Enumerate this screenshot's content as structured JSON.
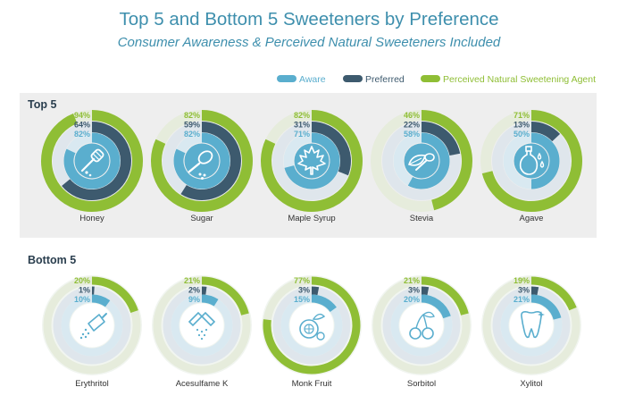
{
  "colors": {
    "aware": "#5aaece",
    "preferred": "#3d5a6e",
    "natural": "#8fbe35",
    "title": "#3e8fad",
    "panel": "#eeeeee"
  },
  "chart_data": {
    "type": "radial-bar",
    "title": "Top 5 and Bottom 5 Sweeteners by Preference",
    "subtitle": "Consumer Awareness & Perceived Natural Sweeteners Included",
    "legend": {
      "aware": "Aware",
      "preferred": "Preferred",
      "natural": "Perceived Natural Sweetening Agent"
    },
    "unit": "%",
    "groups": [
      {
        "label": "Top 5",
        "items": [
          {
            "name": "Honey",
            "icon": "honey-dipper-icon",
            "natural": 94,
            "preferred": 64,
            "aware": 82
          },
          {
            "name": "Sugar",
            "icon": "sugar-spoon-icon",
            "natural": 82,
            "preferred": 59,
            "aware": 82
          },
          {
            "name": "Maple Syrup",
            "icon": "maple-leaf-icon",
            "natural": 82,
            "preferred": 31,
            "aware": 71
          },
          {
            "name": "Stevia",
            "icon": "stevia-leaf-spoon-icon",
            "natural": 46,
            "preferred": 22,
            "aware": 58
          },
          {
            "name": "Agave",
            "icon": "agave-bottle-icon",
            "natural": 71,
            "preferred": 13,
            "aware": 50
          }
        ]
      },
      {
        "label": "Bottom 5",
        "items": [
          {
            "name": "Erythritol",
            "icon": "scoop-icon",
            "natural": 20,
            "preferred": 1,
            "aware": 10
          },
          {
            "name": "Acesulfame K",
            "icon": "sweetener-packet-icon",
            "natural": 21,
            "preferred": 2,
            "aware": 9
          },
          {
            "name": "Monk Fruit",
            "icon": "monk-fruit-icon",
            "natural": 77,
            "preferred": 3,
            "aware": 15
          },
          {
            "name": "Sorbitol",
            "icon": "cherries-icon",
            "natural": 21,
            "preferred": 3,
            "aware": 20
          },
          {
            "name": "Xylitol",
            "icon": "tooth-icon",
            "natural": 19,
            "preferred": 3,
            "aware": 21
          }
        ]
      }
    ]
  }
}
